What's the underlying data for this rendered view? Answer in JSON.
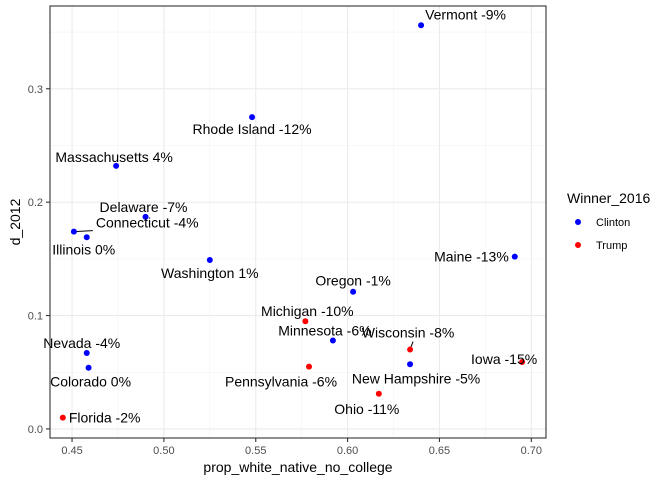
{
  "chart_data": {
    "type": "scatter",
    "xlabel": "prop_white_native_no_college",
    "ylabel": "d_2012",
    "xlim": [
      0.438,
      0.708
    ],
    "ylim": [
      -0.008,
      0.373
    ],
    "x_ticks": [
      0.45,
      0.5,
      0.55,
      0.6,
      0.65,
      0.7
    ],
    "x_tick_labels": [
      "0.45",
      "0.50",
      "0.55",
      "0.60",
      "0.65",
      "0.70"
    ],
    "y_ticks": [
      0.0,
      0.1,
      0.2,
      0.3
    ],
    "y_tick_labels": [
      "0.0",
      "0.1",
      "0.2",
      "0.3"
    ],
    "grid": true,
    "legend": {
      "title": "Winner_2016",
      "placement": "right",
      "entries": [
        {
          "name": "Clinton",
          "color": "#0000ff"
        },
        {
          "name": "Trump",
          "color": "#ff0000"
        }
      ]
    },
    "points": [
      {
        "label": "Vermont -9%",
        "x": 0.64,
        "y": 0.356,
        "winner": "Clinton"
      },
      {
        "label": "Rhode Island -12%",
        "x": 0.548,
        "y": 0.275,
        "winner": "Clinton"
      },
      {
        "label": "Massachusetts 4%",
        "x": 0.474,
        "y": 0.232,
        "winner": "Clinton"
      },
      {
        "label": "Delaware -7%",
        "x": 0.49,
        "y": 0.187,
        "winner": "Clinton"
      },
      {
        "label": "Connecticut -4%",
        "x": 0.451,
        "y": 0.174,
        "winner": "Clinton"
      },
      {
        "label": "Illinois 0%",
        "x": 0.458,
        "y": 0.169,
        "winner": "Clinton"
      },
      {
        "label": "Washington 1%",
        "x": 0.525,
        "y": 0.149,
        "winner": "Clinton"
      },
      {
        "label": "Maine -13%",
        "x": 0.691,
        "y": 0.152,
        "winner": "Clinton"
      },
      {
        "label": "Oregon -1%",
        "x": 0.603,
        "y": 0.121,
        "winner": "Clinton"
      },
      {
        "label": "Minnesota -6%",
        "x": 0.592,
        "y": 0.078,
        "winner": "Clinton"
      },
      {
        "label": "Nevada -4%",
        "x": 0.458,
        "y": 0.067,
        "winner": "Clinton"
      },
      {
        "label": "Colorado 0%",
        "x": 0.459,
        "y": 0.054,
        "winner": "Clinton"
      },
      {
        "label": "New Hampshire -5%",
        "x": 0.634,
        "y": 0.057,
        "winner": "Clinton"
      },
      {
        "label": "Michigan -10%",
        "x": 0.577,
        "y": 0.095,
        "winner": "Trump"
      },
      {
        "label": "Wisconsin -8%",
        "x": 0.634,
        "y": 0.07,
        "winner": "Trump"
      },
      {
        "label": "Iowa -15%",
        "x": 0.695,
        "y": 0.059,
        "winner": "Trump"
      },
      {
        "label": "Pennsylvania -6%",
        "x": 0.579,
        "y": 0.055,
        "winner": "Trump"
      },
      {
        "label": "Ohio -11%",
        "x": 0.617,
        "y": 0.031,
        "winner": "Trump"
      },
      {
        "label": "Florida -2%",
        "x": 0.445,
        "y": 0.01,
        "winner": "Trump"
      }
    ]
  }
}
